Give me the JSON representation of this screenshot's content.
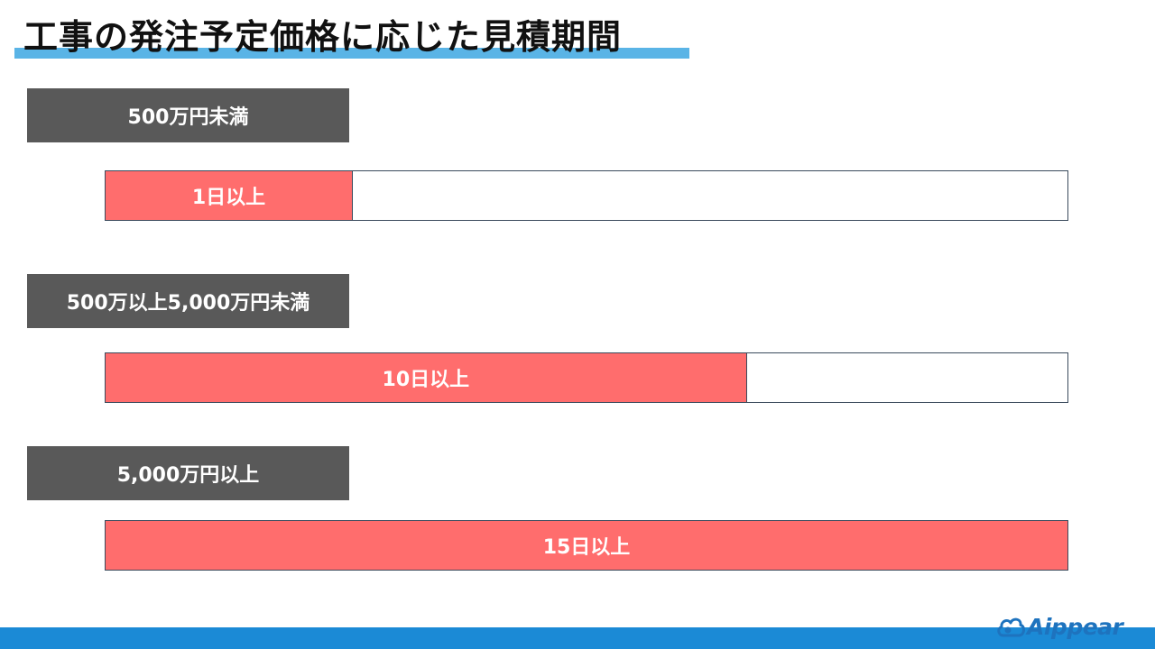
{
  "title": "工事の発注予定価格に応じた見積期間",
  "colors": {
    "accent_underline": "#5ab4e6",
    "label_bg": "#595959",
    "bar_fill": "#ff6d6d",
    "footer": "#1b8ad6",
    "logo": "#1e73be"
  },
  "tiers": [
    {
      "price_range": "500万円未満",
      "period": "1日以上",
      "days": 1
    },
    {
      "price_range": "500万以上5,000万円未満",
      "period": "10日以上",
      "days": 10
    },
    {
      "price_range": "5,000万円以上",
      "period": "15日以上",
      "days": 15
    }
  ],
  "scale_max_days": 15,
  "logo": {
    "text": "Aippear",
    "icon": "cloud-icon"
  }
}
